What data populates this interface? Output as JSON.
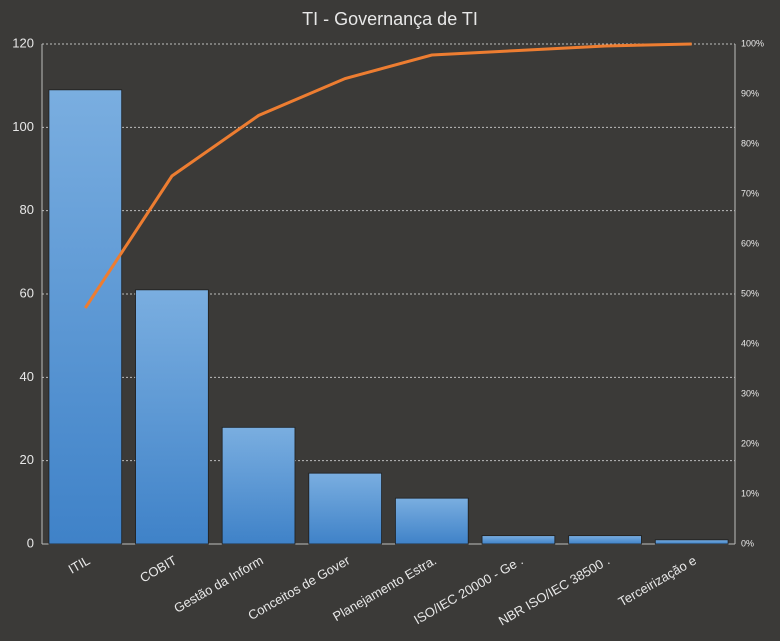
{
  "chart_data": {
    "type": "pareto",
    "title": "TI - Governança de TI",
    "categories": [
      "ITIL",
      "COBIT",
      "Gestão da Inform",
      "Conceitos de Gover",
      "Planejamento Estra.",
      "ISO/IEC 20000 - Ge .",
      "NBR ISO/IEC 38500 .",
      "Terceirização e"
    ],
    "series": [
      {
        "type": "bar",
        "color": "#5b9bd5",
        "values": [
          109,
          61,
          28,
          17,
          11,
          2,
          2,
          1
        ]
      },
      {
        "type": "line",
        "axis": "y2",
        "color": "#ed7d31",
        "values": [
          47.2,
          73.6,
          85.7,
          93.1,
          97.8,
          98.7,
          99.6,
          100
        ]
      }
    ],
    "ylim": [
      0,
      120
    ],
    "yticks": [
      0,
      20,
      40,
      60,
      80,
      100,
      120
    ],
    "y2lim": [
      0,
      100
    ],
    "y2ticks": [
      {
        "value": 0,
        "label": "0%"
      },
      {
        "value": 10,
        "label": "10%"
      },
      {
        "value": 20,
        "label": "20%"
      },
      {
        "value": 30,
        "label": "30%"
      },
      {
        "value": 40,
        "label": "40%"
      },
      {
        "value": 50,
        "label": "50%"
      },
      {
        "value": 60,
        "label": "60%"
      },
      {
        "value": 70,
        "label": "70%"
      },
      {
        "value": 80,
        "label": "80%"
      },
      {
        "value": 90,
        "label": "90%"
      },
      {
        "value": 100,
        "label": "100%"
      }
    ],
    "grid": true
  }
}
